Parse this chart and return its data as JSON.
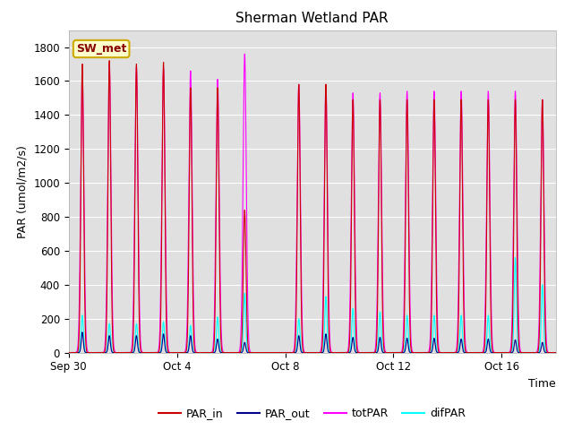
{
  "title": "Sherman Wetland PAR",
  "xlabel": "Time",
  "ylabel": "PAR (umol/m2/s)",
  "ylim": [
    0,
    1900
  ],
  "yticks": [
    0,
    200,
    400,
    600,
    800,
    1000,
    1200,
    1400,
    1600,
    1800
  ],
  "bg_color": "#e0e0e0",
  "fig_color": "#ffffff",
  "series": {
    "PAR_in": {
      "color": "#cc0000",
      "lw": 0.8
    },
    "PAR_out": {
      "color": "#00008b",
      "lw": 0.8
    },
    "totPAR": {
      "color": "#ff00ff",
      "lw": 0.8
    },
    "difPAR": {
      "color": "#00ffff",
      "lw": 0.8
    }
  },
  "label_box": {
    "text": "SW_met",
    "facecolor": "#ffffcc",
    "edgecolor": "#ccaa00",
    "textcolor": "#880000"
  },
  "n_days": 18,
  "xtick_labels": [
    "Sep 30",
    "Oct 4",
    "Oct 8",
    "Oct 12",
    "Oct 16"
  ],
  "xtick_positions": [
    0,
    4,
    8,
    12,
    16
  ],
  "peaks_PAR_in": [
    1700,
    1720,
    1700,
    1710,
    1560,
    1560,
    840,
    0,
    1580,
    1580,
    1490,
    1490,
    1490,
    1490,
    1490,
    1490,
    1490,
    1490
  ],
  "peaks_totPAR": [
    1640,
    1700,
    1680,
    1670,
    1660,
    1610,
    1760,
    0,
    1580,
    1580,
    1530,
    1530,
    1540,
    1540,
    1540,
    1540,
    1540,
    1490
  ],
  "peaks_PAR_out": [
    120,
    100,
    100,
    110,
    100,
    80,
    60,
    0,
    100,
    110,
    90,
    90,
    85,
    85,
    80,
    80,
    75,
    60
  ],
  "peaks_difPAR": [
    220,
    170,
    170,
    180,
    160,
    210,
    350,
    0,
    200,
    330,
    260,
    240,
    220,
    220,
    220,
    220,
    560,
    400
  ]
}
